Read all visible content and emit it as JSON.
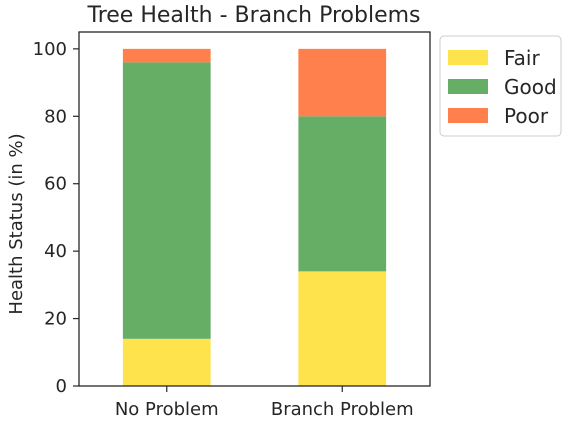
{
  "chart_data": {
    "type": "bar",
    "stacked": true,
    "title": "Tree Health - Branch Problems",
    "xlabel": "",
    "ylabel": "Health Status (in %)",
    "ylim": [
      0,
      105
    ],
    "yticks": [
      "0",
      "20",
      "40",
      "60",
      "80",
      "100"
    ],
    "categories": [
      "No Problem",
      "Branch Problem"
    ],
    "grid": false,
    "legend_position": "outside-top-right",
    "series": [
      {
        "name": "Fair",
        "color": "#ffe34d",
        "values": [
          14,
          34
        ]
      },
      {
        "name": "Good",
        "color": "#66ad66",
        "values": [
          82,
          46
        ]
      },
      {
        "name": "Poor",
        "color": "#ff7f4d",
        "values": [
          4,
          20
        ]
      }
    ]
  }
}
